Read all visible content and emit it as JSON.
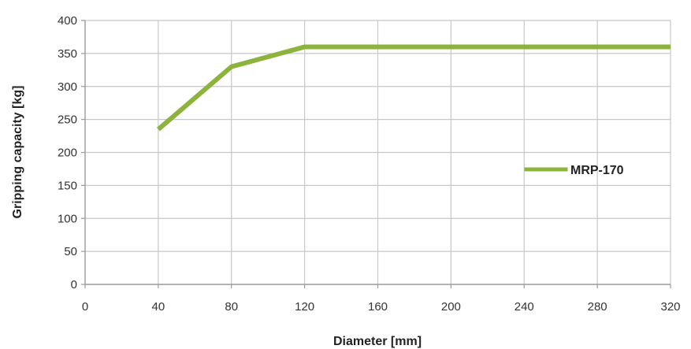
{
  "chart_data": {
    "type": "line",
    "xlabel": "Diameter [mm]",
    "ylabel": "Gripping capacity [kg]",
    "xlim": [
      0,
      320
    ],
    "ylim": [
      0,
      400
    ],
    "x_ticks": [
      0,
      40,
      80,
      120,
      160,
      200,
      240,
      280,
      320
    ],
    "y_ticks": [
      0,
      50,
      100,
      150,
      200,
      250,
      300,
      350,
      400
    ],
    "grid": true,
    "legend_position": "right",
    "series": [
      {
        "name": "MRP-170",
        "color": "#8cb43c",
        "x": [
          40,
          80,
          120,
          160,
          200,
          240,
          280,
          320
        ],
        "y": [
          235,
          330,
          360,
          360,
          360,
          360,
          360,
          360
        ]
      }
    ]
  }
}
